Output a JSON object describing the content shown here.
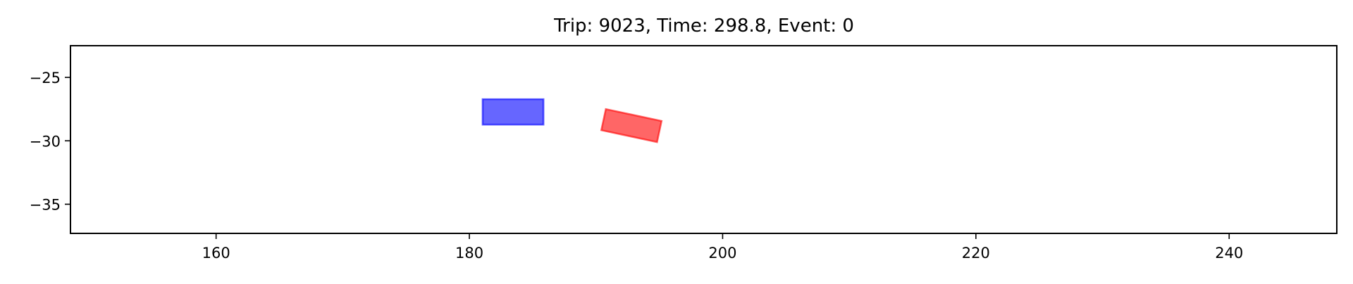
{
  "chart_data": {
    "type": "scatter",
    "title": "Trip: 9023, Time: 298.8, Event: 0",
    "xlabel": "",
    "ylabel": "",
    "xlim": [
      148.5,
      248.5
    ],
    "ylim": [
      -37.3,
      -22.5
    ],
    "xticks": [
      160,
      180,
      200,
      220,
      240
    ],
    "xtick_labels": [
      "160",
      "180",
      "200",
      "220",
      "240"
    ],
    "yticks": [
      -25,
      -30,
      -35
    ],
    "ytick_labels": [
      "−25",
      "−30",
      "−35"
    ],
    "grid": false,
    "legend": "none",
    "objects": [
      {
        "shape": "rotated-rectangle",
        "center": [
          183.45,
          -27.72
        ],
        "length": 4.8,
        "width": 2.0,
        "heading_deg": 0,
        "fill": "#0000ff",
        "edge": "#0000ff",
        "alpha": 0.6
      },
      {
        "shape": "rotated-rectangle",
        "center": [
          192.8,
          -28.8
        ],
        "length": 4.5,
        "width": 1.7,
        "heading_deg": -12,
        "fill": "#ff0000",
        "edge": "#ff0000",
        "alpha": 0.6
      }
    ]
  }
}
